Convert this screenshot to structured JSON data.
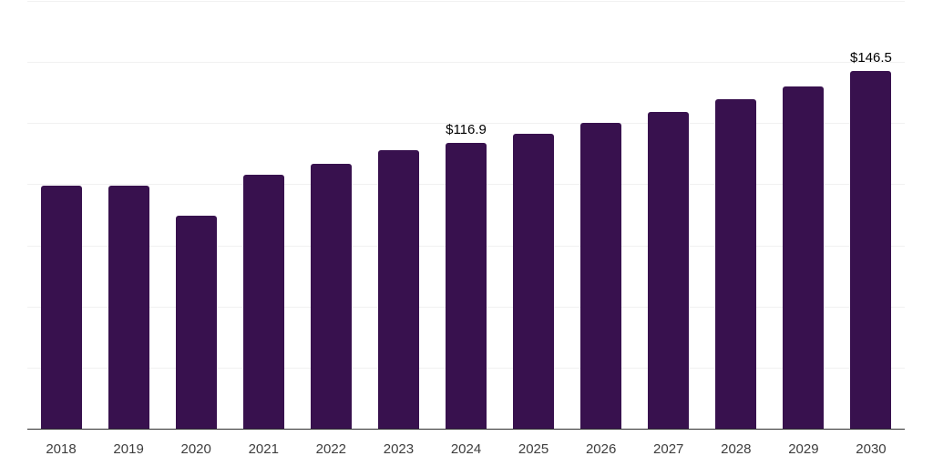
{
  "chart_data": {
    "type": "bar",
    "title": "",
    "xlabel": "",
    "ylabel": "",
    "categories": [
      "2018",
      "2019",
      "2020",
      "2021",
      "2022",
      "2023",
      "2024",
      "2025",
      "2026",
      "2027",
      "2028",
      "2029",
      "2030"
    ],
    "values": [
      99.6,
      99.3,
      87.3,
      104.0,
      108.5,
      113.8,
      116.9,
      120.8,
      125.0,
      129.4,
      134.9,
      140.0,
      146.5
    ],
    "data_labels": [
      {
        "category": "2024",
        "text": "$116.9"
      },
      {
        "category": "2030",
        "text": "$146.5"
      }
    ],
    "ylim": [
      0,
      175
    ],
    "y_gridline_step": 25,
    "grid": true,
    "y_tick_labels_shown": false,
    "legend_position": "none"
  },
  "colors": {
    "background": "#ffffff",
    "bar": "#38114e",
    "gridline": "#f1f1f1",
    "axis_line": "#2e2e2e",
    "tick_label": "#3d3d3d",
    "data_label": "#000000"
  }
}
